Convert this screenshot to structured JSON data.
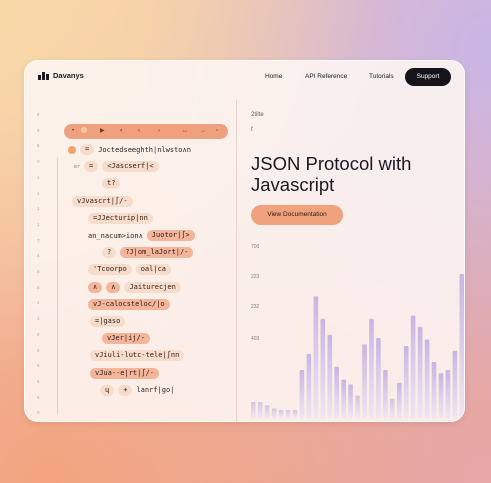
{
  "brand": {
    "name": "Davanys"
  },
  "nav": {
    "links": [
      "Home",
      "API Reference",
      "Tutorials"
    ],
    "cta": "Support"
  },
  "editor": {
    "line_numbers": [
      "8",
      "9",
      "8",
      "0",
      "1",
      "4",
      "1",
      "1",
      "7",
      "4",
      "9",
      "8",
      "4",
      "3",
      "8",
      "6",
      "8",
      "6",
      "8",
      "0"
    ],
    "rows": [
      {
        "gutter": "",
        "tokens": [
          {
            "t": "=",
            "s": "light"
          },
          {
            "t": "Joctedseeghth|nlwsto∧n",
            "s": "plain"
          }
        ]
      },
      {
        "gutter": "er",
        "tokens": [
          {
            "t": "=",
            "s": "light"
          },
          {
            "t": "<Jascserf|<",
            "s": "light"
          }
        ]
      },
      {
        "gutter": "",
        "tokens": [
          {
            "t": "t?",
            "s": "light"
          }
        ]
      },
      {
        "gutter": "",
        "tokens": [
          {
            "t": "vJvascrt|∫/-",
            "s": "light"
          }
        ]
      },
      {
        "gutter": "",
        "tokens": [
          {
            "t": "=JJecturip|nn",
            "s": "light"
          }
        ]
      },
      {
        "gutter": "",
        "tokens": [
          {
            "t": "an_nacum>ion∧",
            "s": "plain"
          },
          {
            "t": "Juotor|∫>",
            "s": "mid"
          }
        ]
      },
      {
        "gutter": "",
        "tokens": [
          {
            "t": "?",
            "s": "light"
          },
          {
            "t": "?J|om_laJort|/-",
            "s": "mid"
          }
        ]
      },
      {
        "gutter": "",
        "tokens": [
          {
            "t": "'Tcoorpo",
            "s": "light"
          },
          {
            "t": "oal|ca",
            "s": "light"
          }
        ]
      },
      {
        "gutter": "",
        "tokens": [
          {
            "t": "∧",
            "s": "mid"
          },
          {
            "t": "∧",
            "s": "mid"
          },
          {
            "t": "Jaiturecjen",
            "s": "light"
          }
        ]
      },
      {
        "gutter": "",
        "tokens": [
          {
            "t": "vJ-calocsteloc/|o",
            "s": "mid"
          }
        ]
      },
      {
        "gutter": "",
        "tokens": [
          {
            "t": "=|gaso",
            "s": "light"
          }
        ]
      },
      {
        "gutter": "",
        "tokens": [
          {
            "t": "vJer|ij/-",
            "s": "mid"
          }
        ]
      },
      {
        "gutter": "",
        "tokens": [
          {
            "t": "vJiuli-lutc-tele|∫nn",
            "s": "light"
          }
        ]
      },
      {
        "gutter": "",
        "tokens": [
          {
            "t": "vJua--e|rt|∫/-",
            "s": "mid"
          }
        ]
      },
      {
        "gutter": "",
        "tokens": [
          {
            "t": "ɥ",
            "s": "light"
          },
          {
            "t": "+",
            "s": "light"
          },
          {
            "t": "lanrf|go|",
            "s": "plain"
          }
        ]
      }
    ],
    "toolbar_icons": [
      "dot-icon",
      "record-icon",
      "play-icon",
      "stop-icon",
      "back-icon",
      "forward-icon",
      "sync-icon",
      "arrow-right-icon",
      "square-icon"
    ]
  },
  "hero": {
    "label_top": "2tilte",
    "label_sub": "f",
    "title": "JSON Protocol with Javascript",
    "cta": "View Documentation"
  },
  "chart_data": {
    "type": "bar",
    "y_ticks": [
      "700",
      "223",
      "232",
      "403"
    ],
    "grid": false,
    "legend": "none",
    "colors": {
      "bar": "#c6b2e2",
      "bar_light": "#e6d7ef"
    },
    "values": [
      0.1,
      0.1,
      0.08,
      0.06,
      0.05,
      0.05,
      0.05,
      0.3,
      0.4,
      0.76,
      0.62,
      0.52,
      0.32,
      0.24,
      0.21,
      0.14,
      0.46,
      0.62,
      0.5,
      0.3,
      0.12,
      0.22,
      0.45,
      0.64,
      0.57,
      0.49,
      0.35,
      0.28,
      0.3,
      0.42,
      0.9
    ]
  },
  "theme": {
    "accent": "#f0a27c",
    "accent_strong": "#ee9b7d",
    "dark": "#16141b"
  }
}
